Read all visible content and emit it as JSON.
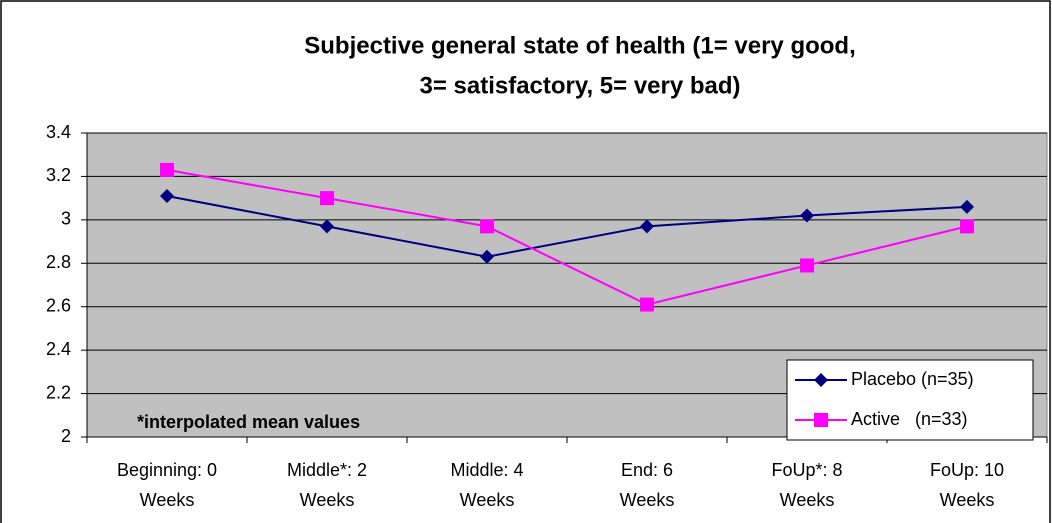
{
  "chart_data": {
    "type": "line",
    "title": [
      "Subjective general state of health (1= very good,",
      "3= satisfactory, 5= very bad)"
    ],
    "annotation": "*interpolated mean values",
    "categories": [
      "Beginning: 0\nWeeks",
      "Middle*: 2\nWeeks",
      "Middle: 4\nWeeks",
      "End: 6\nWeeks",
      "FoUp*: 8\nWeeks",
      "FoUp: 10\nWeeks"
    ],
    "series": [
      {
        "name": "Placebo (n=35)",
        "color": "#000080",
        "marker": "diamond",
        "values": [
          3.11,
          2.97,
          2.83,
          2.97,
          3.02,
          3.06
        ]
      },
      {
        "name": "Active   (n=33)",
        "color": "#FF00FF",
        "marker": "square",
        "values": [
          3.23,
          3.1,
          2.97,
          2.61,
          2.79,
          2.97
        ]
      }
    ],
    "ylim": [
      2,
      3.4
    ],
    "yticks": [
      2,
      2.2,
      2.4,
      2.6,
      2.8,
      3,
      3.2,
      3.4
    ],
    "grid": true,
    "legend": "bottom-right"
  }
}
